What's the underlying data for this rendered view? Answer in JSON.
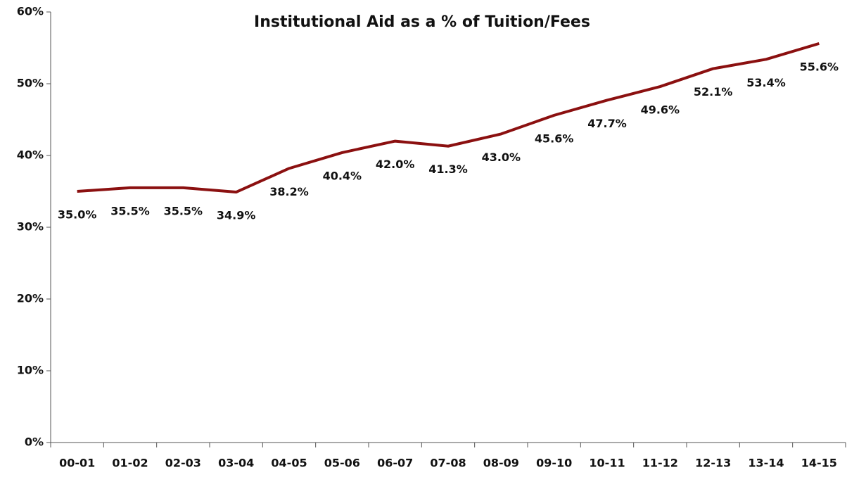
{
  "chart_data": {
    "type": "line",
    "title": "Institutional Aid as a % of Tuition/Fees",
    "categories": [
      "00-01",
      "01-02",
      "02-03",
      "03-04",
      "04-05",
      "05-06",
      "06-07",
      "07-08",
      "08-09",
      "09-10",
      "10-11",
      "11-12",
      "12-13",
      "13-14",
      "14-15"
    ],
    "series": [
      {
        "name": "Institutional Aid",
        "color": "#8b1010",
        "values": [
          35.0,
          35.5,
          35.5,
          34.9,
          38.2,
          40.4,
          42.0,
          41.3,
          43.0,
          45.6,
          47.7,
          49.6,
          52.1,
          53.4,
          55.6
        ],
        "value_labels": [
          "35.0%",
          "35.5%",
          "35.5%",
          "34.9%",
          "38.2%",
          "40.4%",
          "42.0%",
          "41.3%",
          "43.0%",
          "45.6%",
          "47.7%",
          "49.6%",
          "52.1%",
          "53.4%",
          "55.6%"
        ]
      }
    ],
    "ylim": [
      0,
      60
    ],
    "yticks": [
      {
        "value": 0,
        "label": "0%"
      },
      {
        "value": 10,
        "label": "10%"
      },
      {
        "value": 20,
        "label": "20%"
      },
      {
        "value": 30,
        "label": "30%"
      },
      {
        "value": 40,
        "label": "40%"
      },
      {
        "value": 50,
        "label": "50%"
      },
      {
        "value": 60,
        "label": "60%"
      }
    ],
    "grid": false
  }
}
